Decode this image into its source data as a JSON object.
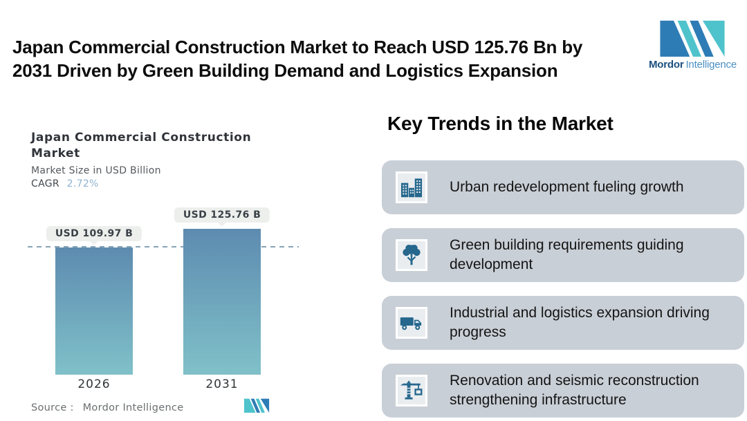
{
  "page": {
    "title_line1": "Japan Commercial Construction Market to Reach USD 125.76 Bn by",
    "title_line2": "2031 Driven by Green Building Demand and Logistics Expansion"
  },
  "brand": {
    "name_bold": "Mordor",
    "name_light": "Intelligence",
    "colors": {
      "blue": "#2E7CB5",
      "teal": "#4FC3CC"
    }
  },
  "chart": {
    "title_line1": "Japan Commercial Construction",
    "title_line2": "Market",
    "subtitle": "Market Size in USD Billion",
    "cagr_label": "CAGR",
    "cagr_value": "2.72%",
    "source_label": "Source :",
    "source_value": "Mordor Intelligence"
  },
  "chart_data": {
    "type": "bar",
    "title": "Japan Commercial Construction Market",
    "subtitle": "Market Size in USD Billion",
    "cagr": "2.72%",
    "categories": [
      "2026",
      "2031"
    ],
    "values": [
      109.97,
      125.76
    ],
    "value_labels": [
      "USD 109.97 B",
      "USD 125.76 B"
    ],
    "ylabel": "Market Size in USD Billion",
    "ylim": [
      0,
      125.76
    ],
    "grid": false,
    "legend": false,
    "bar_gradient": [
      "#5D8BB0",
      "#80C1C9"
    ],
    "reference_line": {
      "y": 109.97,
      "style": "dashed",
      "color": "#86A3B6"
    },
    "source": "Mordor Intelligence"
  },
  "trends": {
    "heading": "Key Trends in the Market",
    "card_bg": "#C9CFD6",
    "icon_color": "#26678D",
    "items": [
      {
        "icon": "buildings-icon",
        "label": "Urban redevelopment fueling growth"
      },
      {
        "icon": "tree-icon",
        "label": "Green building requirements guiding development"
      },
      {
        "icon": "truck-icon",
        "label": "Industrial and logistics expansion driving progress"
      },
      {
        "icon": "crane-icon",
        "label": "Renovation and seismic reconstruction strengthening infrastructure"
      }
    ]
  }
}
